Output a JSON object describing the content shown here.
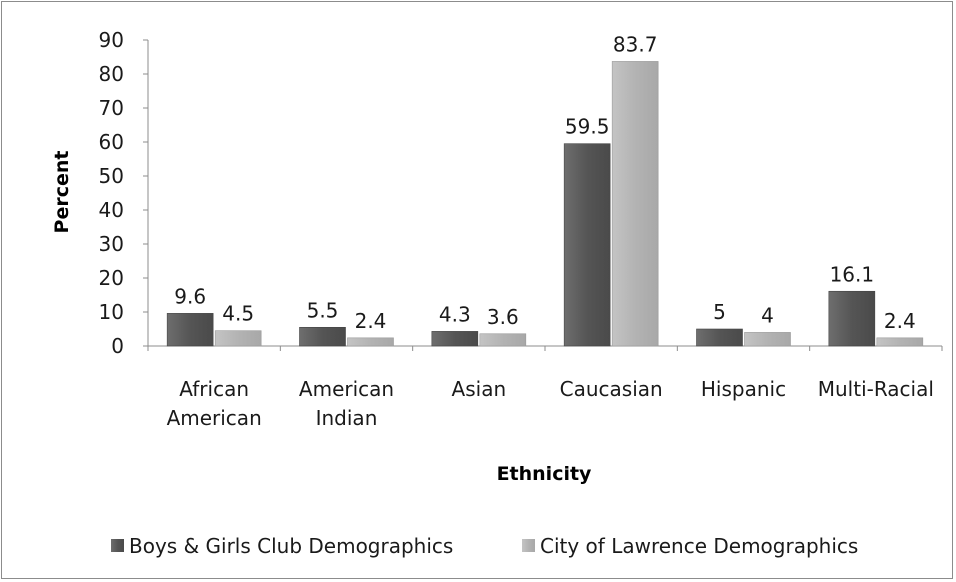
{
  "chart_data": {
    "type": "bar",
    "categories": [
      [
        "African",
        "American"
      ],
      [
        "American",
        "Indian"
      ],
      [
        "Asian"
      ],
      [
        "Caucasian"
      ],
      [
        "Hispanic"
      ],
      [
        "Multi-Racial"
      ]
    ],
    "series": [
      {
        "name": "Boys & Girls Club Demographics",
        "values": [
          9.6,
          5.5,
          4.3,
          59.5,
          5,
          16.1
        ],
        "labels": [
          "9.6",
          "5.5",
          "4.3",
          "59.5",
          "5",
          "16.1"
        ],
        "color": "#595959"
      },
      {
        "name": "City of Lawrence Demographics",
        "values": [
          4.5,
          2.4,
          3.6,
          83.7,
          4,
          2.4
        ],
        "labels": [
          "4.5",
          "2.4",
          "3.6",
          "83.7",
          "4",
          "2.4"
        ],
        "color": "#b3b3b3"
      }
    ],
    "xlabel": "Ethnicity",
    "ylabel": "Percent",
    "ylim": [
      0,
      90
    ],
    "yticks": [
      "0",
      "10",
      "20",
      "30",
      "40",
      "50",
      "60",
      "70",
      "80",
      "90"
    ],
    "grid": false,
    "legend": "bottom"
  }
}
